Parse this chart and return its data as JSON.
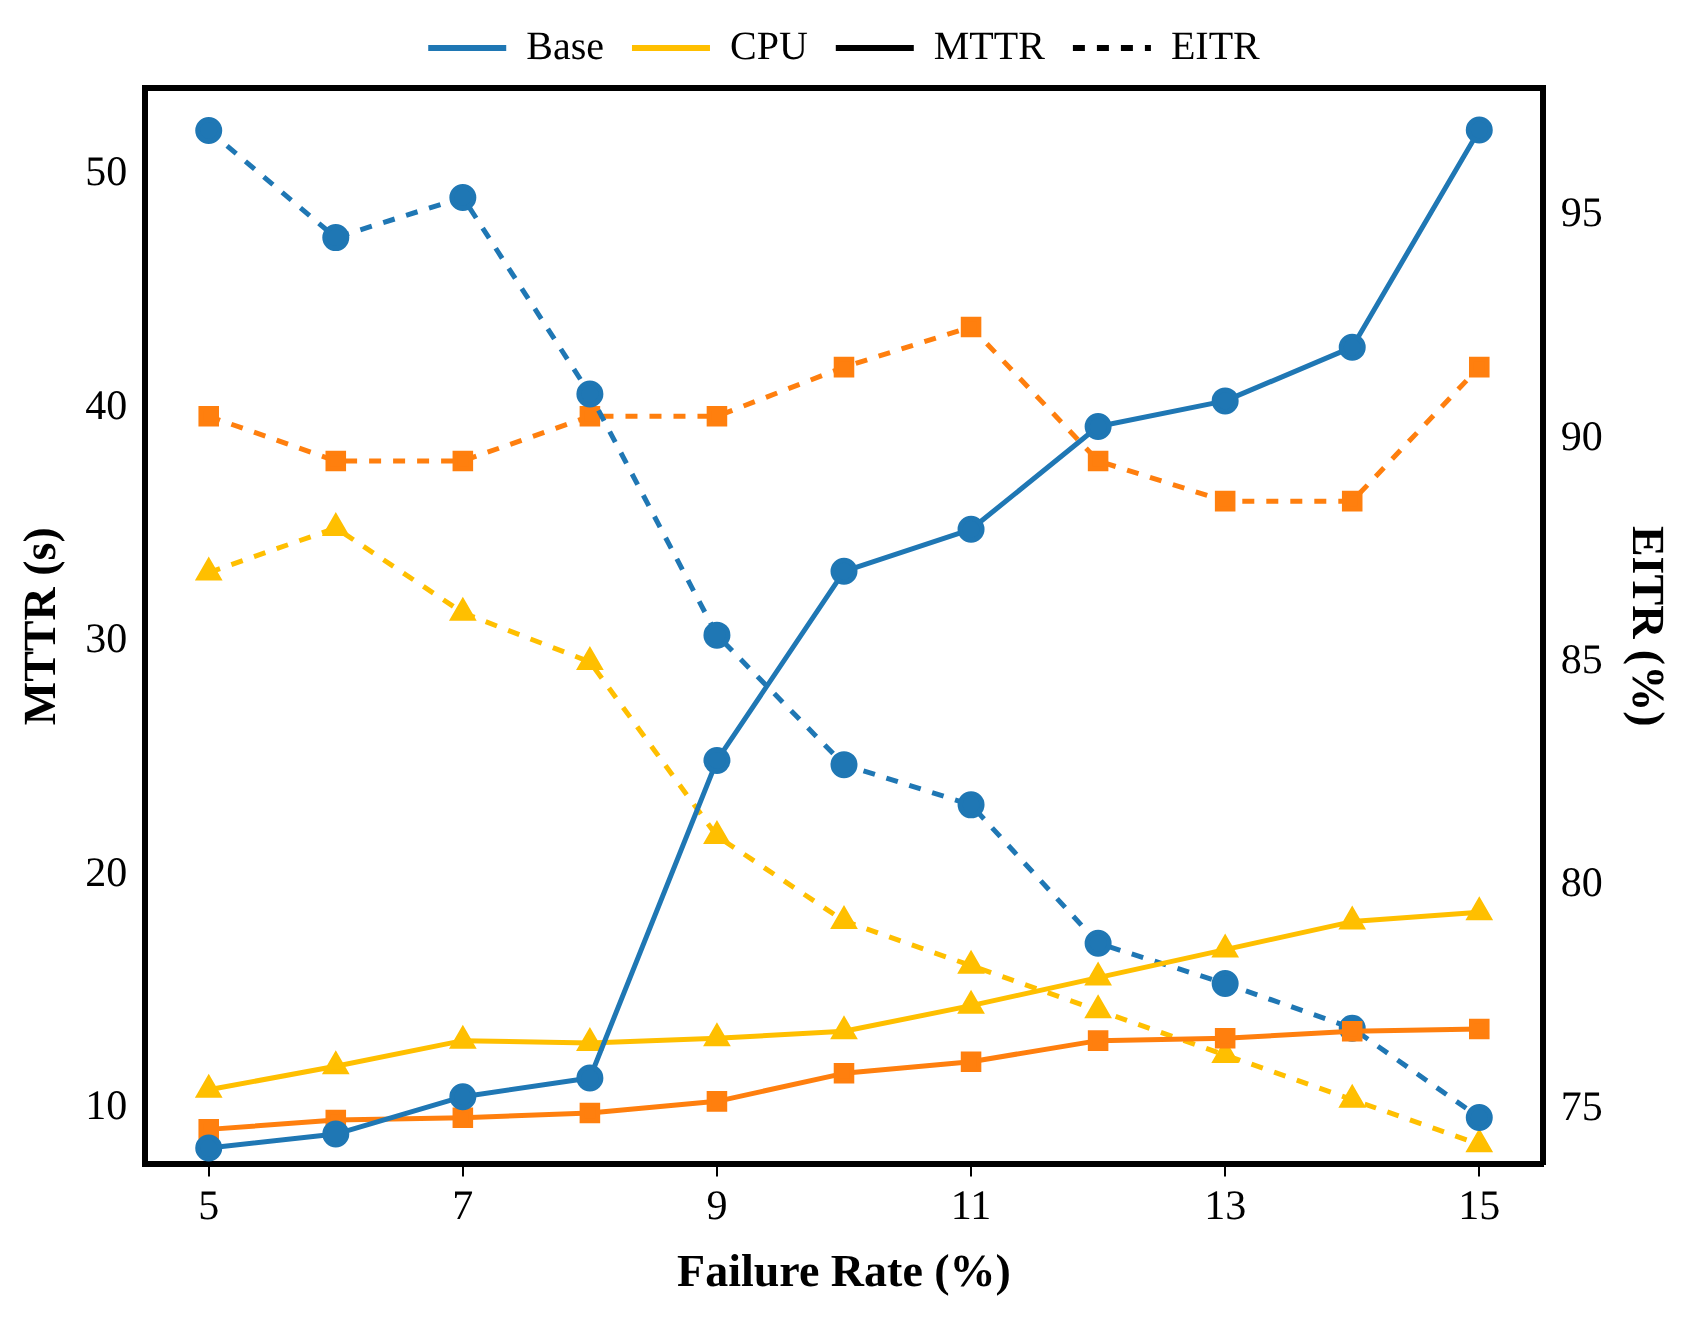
{
  "chart_data": {
    "type": "line",
    "xlabel": "Failure Rate (%)",
    "ylabel": "MTTR (s)",
    "y2label": "EITR (%)",
    "x": [
      5,
      6,
      7,
      8,
      9,
      10,
      11,
      12,
      13,
      14,
      15
    ],
    "xlim": [
      4.5,
      15.5
    ],
    "xticks": [
      5,
      7,
      9,
      11,
      13,
      15
    ],
    "ylim": [
      7.6,
      53.7
    ],
    "yticks": [
      10,
      20,
      30,
      40,
      50
    ],
    "y2lim": [
      73.75,
      97.85
    ],
    "y2ticks": [
      75,
      80,
      85,
      90,
      95
    ],
    "grid": false,
    "legend": "top",
    "series": [
      {
        "name": "Base",
        "color": "#1f77b4",
        "marker": "circle",
        "line_style": "solid",
        "axis": "y",
        "values": [
          8.3,
          8.9,
          10.5,
          11.3,
          24.9,
          33.0,
          34.8,
          39.2,
          40.3,
          42.6,
          51.9
        ]
      },
      {
        "name": null,
        "color": "#ff7f0e",
        "marker": "square",
        "line_style": "solid",
        "axis": "y",
        "values": [
          9.1,
          9.5,
          9.6,
          9.8,
          10.3,
          11.5,
          12.0,
          12.9,
          13.0,
          13.3,
          13.4
        ]
      },
      {
        "name": "CPU",
        "color": "#ffbf00",
        "marker": "triangle",
        "line_style": "solid",
        "axis": "y",
        "values": [
          10.8,
          11.8,
          12.9,
          12.8,
          13.0,
          13.3,
          14.4,
          15.6,
          16.8,
          18.0,
          18.4
        ]
      },
      {
        "name": "MTTR",
        "color": "#000000",
        "marker": "none",
        "line_style": "solid",
        "axis": "y",
        "values": [
          null,
          null,
          null,
          null,
          null,
          null,
          null,
          null,
          null,
          null,
          null
        ]
      },
      {
        "name": "EITR",
        "color": "#000000",
        "marker": "none",
        "line_style": "dashed",
        "axis": "y2",
        "values": [
          null,
          null,
          null,
          null,
          null,
          null,
          null,
          null,
          null,
          null,
          null
        ]
      },
      {
        "name": null,
        "color": "#1f77b4",
        "marker": "circle",
        "line_style": "dashed",
        "axis": "y2",
        "values": [
          96.9,
          94.5,
          95.4,
          91.0,
          85.6,
          82.7,
          81.8,
          78.7,
          77.8,
          76.8,
          74.8
        ]
      },
      {
        "name": null,
        "color": "#ff7f0e",
        "marker": "square",
        "line_style": "dashed",
        "axis": "y2",
        "values": [
          90.5,
          89.5,
          89.5,
          90.5,
          90.5,
          91.6,
          92.5,
          89.5,
          88.6,
          88.6,
          91.6
        ]
      },
      {
        "name": null,
        "color": "#ffbf00",
        "marker": "triangle",
        "line_style": "dashed",
        "axis": "y2",
        "values": [
          87.0,
          88.0,
          86.1,
          85.0,
          81.1,
          79.2,
          78.2,
          77.2,
          76.2,
          75.2,
          74.2
        ]
      }
    ]
  }
}
